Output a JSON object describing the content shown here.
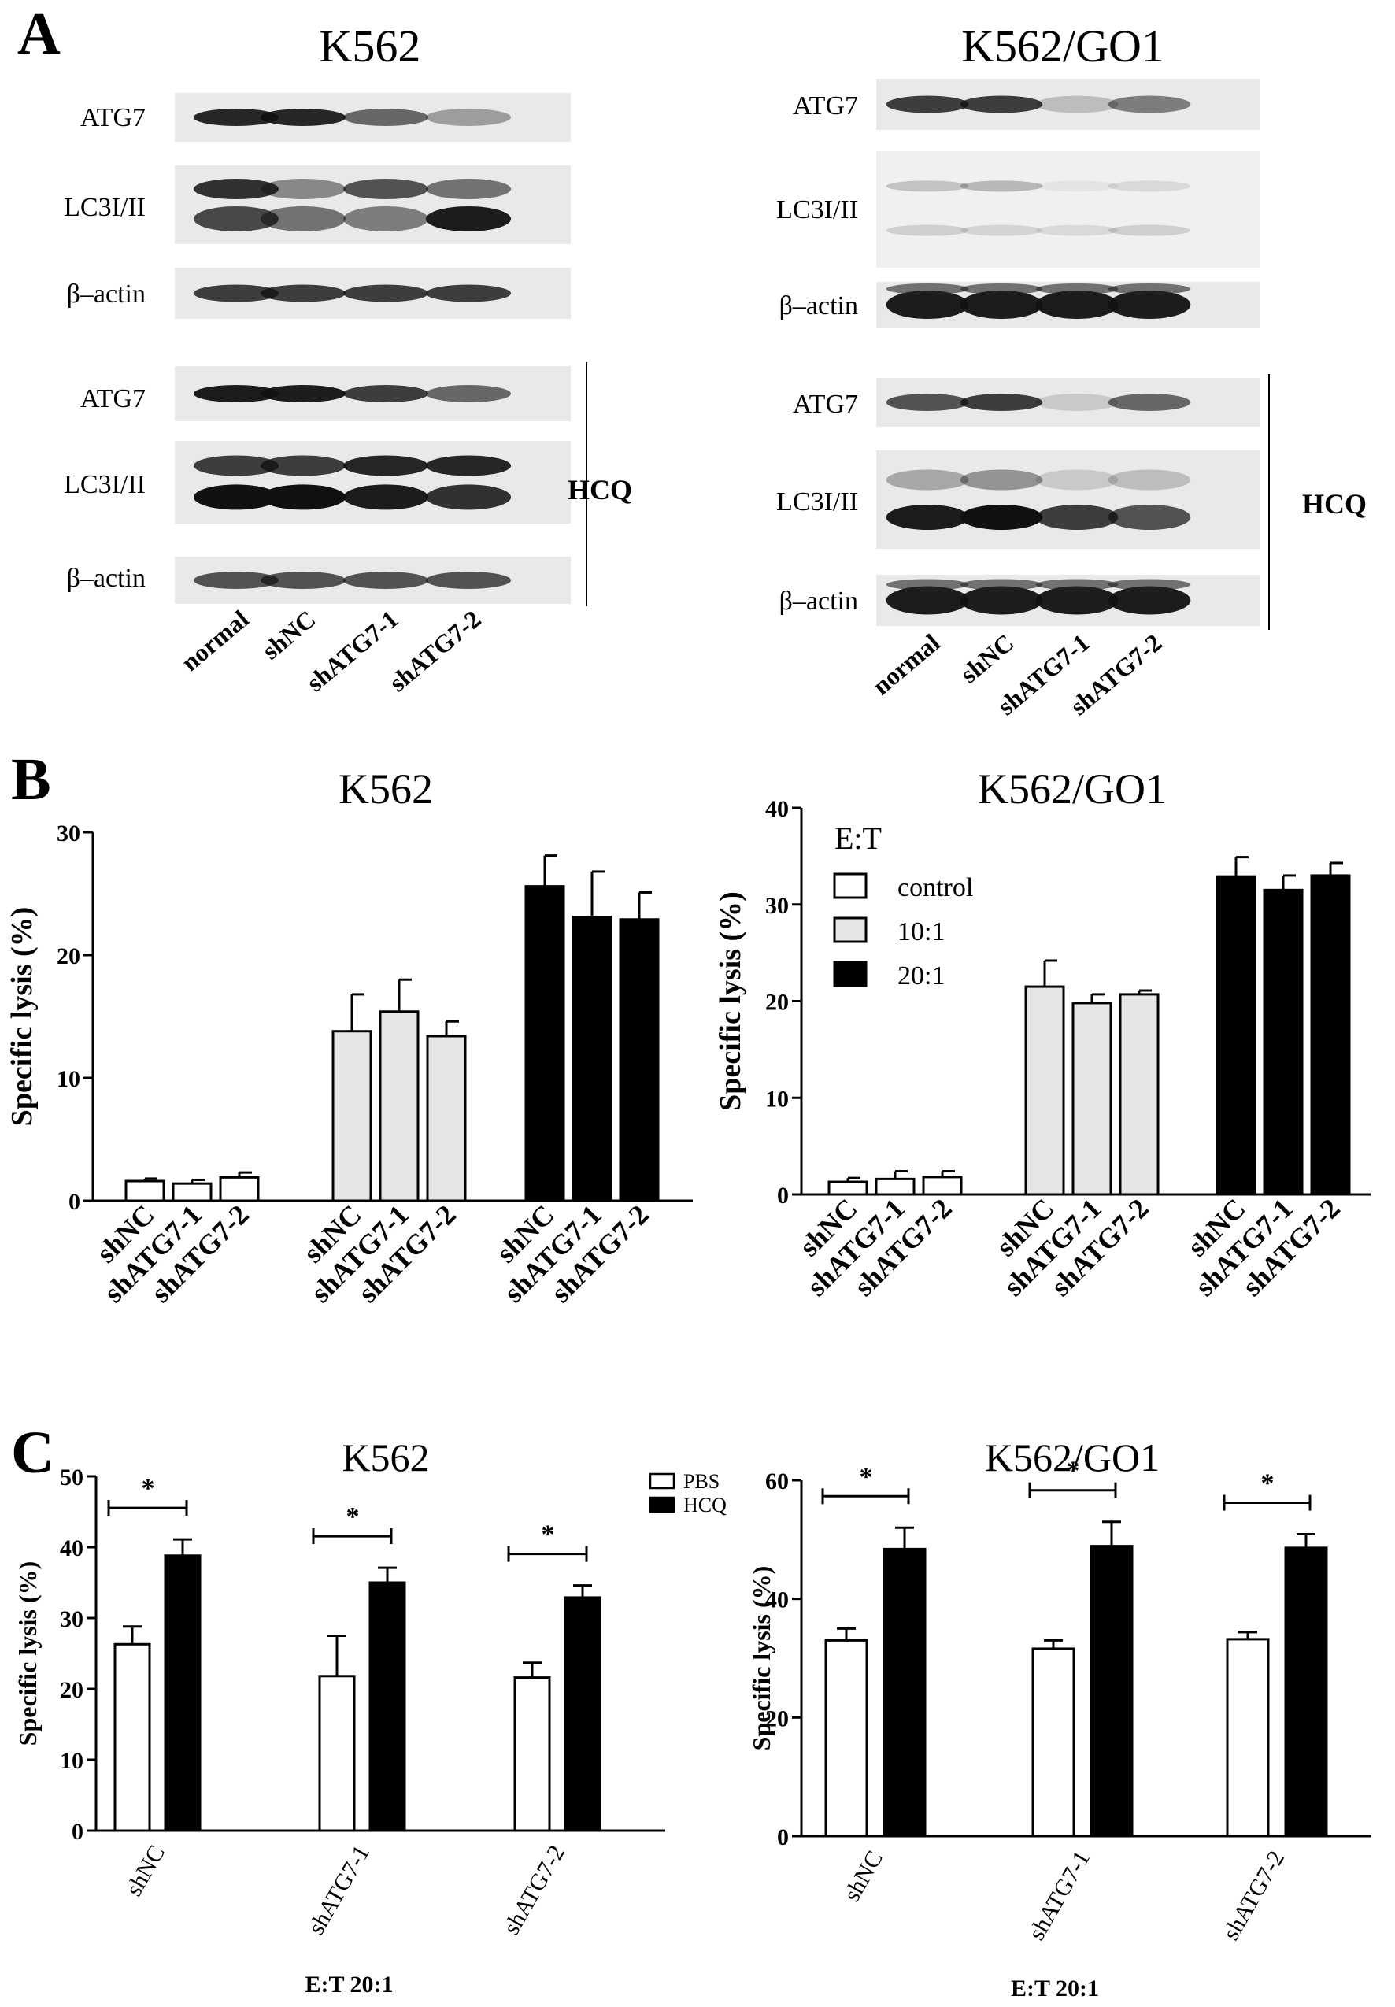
{
  "panels": {
    "A": {
      "letter": "A"
    },
    "B": {
      "letter": "B"
    },
    "C": {
      "letter": "C"
    }
  },
  "blots": [
    {
      "title": "K562",
      "rows_top": [
        "ATG7",
        "LC3I/II",
        "β–actin"
      ],
      "rows_bottom": [
        "ATG7",
        "LC3I/II",
        "β–actin"
      ],
      "hcq_label": "HCQ",
      "lanes": [
        "normal",
        "shNC",
        "shATG7-1",
        "shATG7-2"
      ]
    },
    {
      "title": "K562/GO1",
      "rows_top": [
        "ATG7",
        "LC3I/II",
        "β–actin"
      ],
      "rows_bottom": [
        "ATG7",
        "LC3I/II",
        "β–actin"
      ],
      "hcq_label": "HCQ",
      "lanes": [
        "normal",
        "shNC",
        "shATG7-1",
        "shATG7-2"
      ]
    }
  ],
  "chart_data": [
    {
      "id": "B-K562",
      "type": "bar",
      "title": "K562",
      "ylabel": "Specific lysis (%)",
      "ylim": [
        0,
        30
      ],
      "yticks": [
        0,
        10,
        20,
        30
      ],
      "groups": [
        "control",
        "10:1",
        "20:1"
      ],
      "categories": [
        "shNC",
        "shATG7-1",
        "shATG7-2"
      ],
      "series": [
        {
          "name": "control",
          "values": [
            1.6,
            1.4,
            1.9
          ],
          "errors": [
            0.2,
            0.3,
            0.4
          ],
          "color": "#ffffff"
        },
        {
          "name": "10:1",
          "values": [
            13.8,
            15.4,
            13.4
          ],
          "errors": [
            3.0,
            2.6,
            1.2
          ],
          "color": "#e6e6e6"
        },
        {
          "name": "20:1",
          "values": [
            25.6,
            23.1,
            22.9
          ],
          "errors": [
            2.5,
            3.7,
            2.2
          ],
          "color": "#000000"
        }
      ]
    },
    {
      "id": "B-K562GO1",
      "type": "bar",
      "title": "K562/GO1",
      "ylabel": "Specific lysis (%)",
      "ylim": [
        0,
        40
      ],
      "yticks": [
        0,
        10,
        20,
        30,
        40
      ],
      "categories": [
        "shNC",
        "shATG7-1",
        "shATG7-2"
      ],
      "legend_title": "E:T",
      "legend": [
        "control",
        "10:1",
        "20:1"
      ],
      "series": [
        {
          "name": "control",
          "values": [
            1.3,
            1.6,
            1.8
          ],
          "errors": [
            0.4,
            0.8,
            0.6
          ],
          "color": "#ffffff"
        },
        {
          "name": "10:1",
          "values": [
            21.5,
            19.8,
            20.7
          ],
          "errors": [
            2.7,
            0.9,
            0.4
          ],
          "color": "#e6e6e6"
        },
        {
          "name": "20:1",
          "values": [
            32.9,
            31.5,
            33.0
          ],
          "errors": [
            2.0,
            1.5,
            1.3
          ],
          "color": "#000000"
        }
      ]
    },
    {
      "id": "C-K562",
      "type": "bar",
      "title": "K562",
      "ylabel": "Specific lysis (%)",
      "xlabel": "E:T  20:1",
      "ylim": [
        0,
        50
      ],
      "yticks": [
        0,
        10,
        20,
        30,
        40,
        50
      ],
      "categories": [
        "shNC",
        "shATG7-1",
        "shATG7-2"
      ],
      "legend": [
        "PBS",
        "HCQ"
      ],
      "significance": [
        "*",
        "*",
        "*"
      ],
      "series": [
        {
          "name": "PBS",
          "values": [
            26.3,
            21.8,
            21.6
          ],
          "errors": [
            2.5,
            5.7,
            2.1
          ],
          "color": "#ffffff"
        },
        {
          "name": "HCQ",
          "values": [
            38.8,
            35.0,
            32.9
          ],
          "errors": [
            2.3,
            2.1,
            1.7
          ],
          "color": "#000000"
        }
      ]
    },
    {
      "id": "C-K562GO1",
      "type": "bar",
      "title": "K562/GO1",
      "ylabel": "Specific lysis (%)",
      "xlabel": "E:T  20:1",
      "ylim": [
        0,
        60
      ],
      "yticks": [
        0,
        20,
        40,
        60
      ],
      "categories": [
        "shNC",
        "shATG7-1",
        "shATG7-2"
      ],
      "significance": [
        "*",
        "*",
        "*"
      ],
      "series": [
        {
          "name": "PBS",
          "values": [
            33.0,
            31.6,
            33.2
          ],
          "errors": [
            2.0,
            1.4,
            1.2
          ],
          "color": "#ffffff"
        },
        {
          "name": "HCQ",
          "values": [
            48.4,
            48.9,
            48.6
          ],
          "errors": [
            3.6,
            4.1,
            2.3
          ],
          "color": "#000000"
        }
      ]
    }
  ]
}
